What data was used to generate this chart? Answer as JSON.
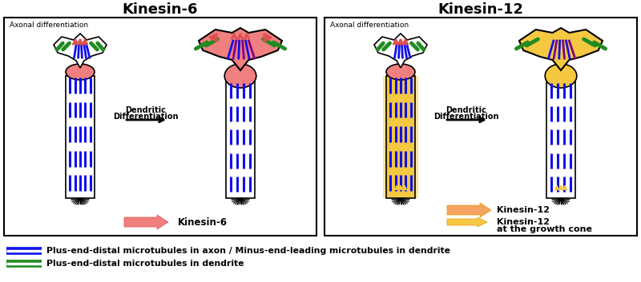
{
  "title_left": "Kinesin-6",
  "title_right": "Kinesin-12",
  "bg_color": "#ffffff",
  "legend_blue_label": "Plus-end-distal microtubules in axon / Minus-end-leading microtubules in dendrite",
  "legend_green_label": "Plus-end-distal microtubules in dendrite",
  "blue_color": "#1010EE",
  "green_color": "#228B22",
  "pink_color": "#F08080",
  "pink_dark": "#E05050",
  "orange_color": "#E8960A",
  "light_orange": "#F5C842",
  "peach_color": "#F4A460",
  "purple_color": "#800080",
  "axonal_label": "Axonal differentiation",
  "dendrite_label1": "Dendritic",
  "dendrite_label2": "Differentiation",
  "kinesin6_label": "Kinesin-6",
  "kinesin12_label": "Kinesin-12",
  "kinesin12_gc_label1": "Kinesin-12",
  "kinesin12_gc_label2": "at the growth cone"
}
